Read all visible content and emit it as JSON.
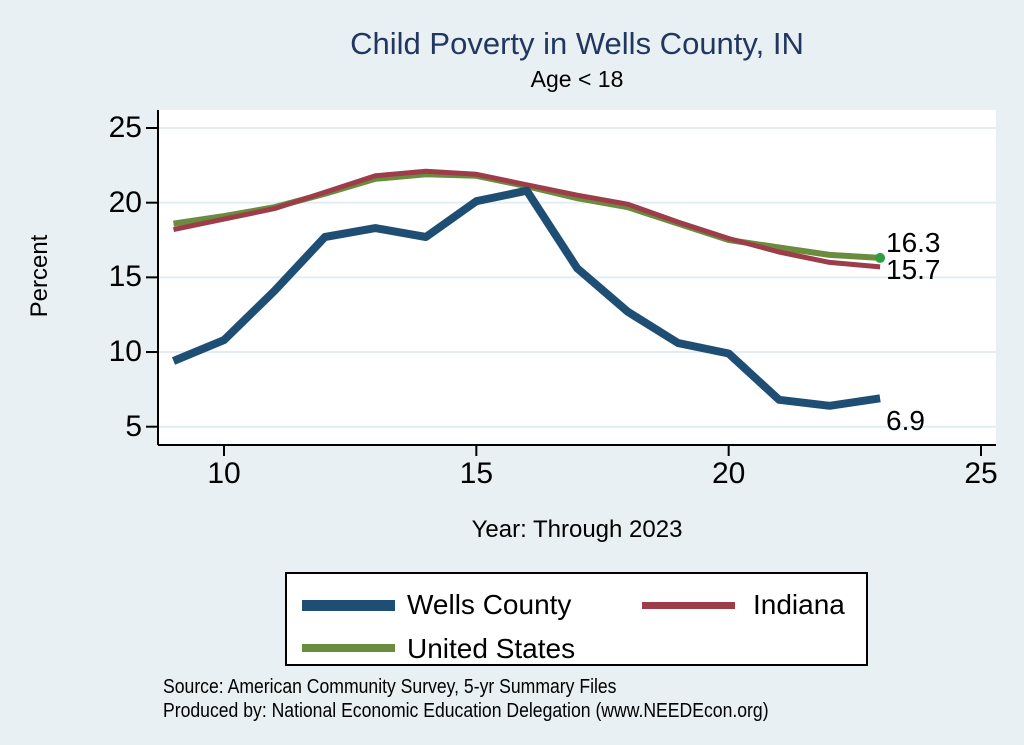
{
  "title": "Child Poverty in Wells County, IN",
  "subtitle": "Age < 18",
  "y_axis": {
    "label": "Percent",
    "ticks": [
      "5",
      "10",
      "15",
      "20",
      "25"
    ]
  },
  "x_axis": {
    "label": "Year: Through 2023",
    "ticks": [
      "10",
      "15",
      "20",
      "25"
    ]
  },
  "chart_data": {
    "type": "line",
    "title": "Child Poverty in Wells County, IN",
    "subtitle": "Age < 18",
    "xlabel": "Year: Through 2023",
    "ylabel": "Percent",
    "xlim": [
      8.7,
      25.3
    ],
    "ylim": [
      3.8,
      26.3
    ],
    "grid": true,
    "legend_position": "bottom",
    "x": [
      9,
      10,
      11,
      12,
      13,
      14,
      15,
      16,
      17,
      18,
      19,
      20,
      21,
      22,
      23
    ],
    "series": [
      {
        "name": "Wells County",
        "color": "#1f4e75",
        "stroke_width": 8,
        "values": [
          9.4,
          10.8,
          14.1,
          17.7,
          18.3,
          17.7,
          20.1,
          20.8,
          15.6,
          12.7,
          10.6,
          9.9,
          6.8,
          6.4,
          6.9
        ]
      },
      {
        "name": "Indiana",
        "color": "#9d3d49",
        "stroke_width": 5,
        "values": [
          18.2,
          18.9,
          19.6,
          20.7,
          21.8,
          22.1,
          21.9,
          21.2,
          20.5,
          19.9,
          18.7,
          17.6,
          16.7,
          16.0,
          15.7
        ]
      },
      {
        "name": "United States",
        "color": "#6b8c3f",
        "stroke_width": 6,
        "end_marker_color": "#2f9e41",
        "values": [
          18.6,
          19.1,
          19.7,
          20.6,
          21.6,
          21.9,
          21.8,
          21.1,
          20.3,
          19.7,
          18.6,
          17.5,
          17.0,
          16.5,
          16.3
        ]
      }
    ],
    "end_labels": [
      {
        "series": "United States",
        "text": "16.3"
      },
      {
        "series": "Indiana",
        "text": "15.7"
      },
      {
        "series": "Wells County",
        "text": "6.9"
      }
    ]
  },
  "legend": {
    "items": [
      {
        "label": "Wells County"
      },
      {
        "label": "Indiana"
      },
      {
        "label": "United States"
      }
    ]
  },
  "source_line1": "Source: American Community Survey, 5-yr Summary Files",
  "source_line2": "Produced by: National Economic Education Delegation (www.NEEDEcon.org)",
  "colors": {
    "background": "#e8f0f3",
    "plot_background": "#ffffff",
    "gridline": "#e2edf3",
    "axis": "#000000",
    "title": "#21375f"
  }
}
